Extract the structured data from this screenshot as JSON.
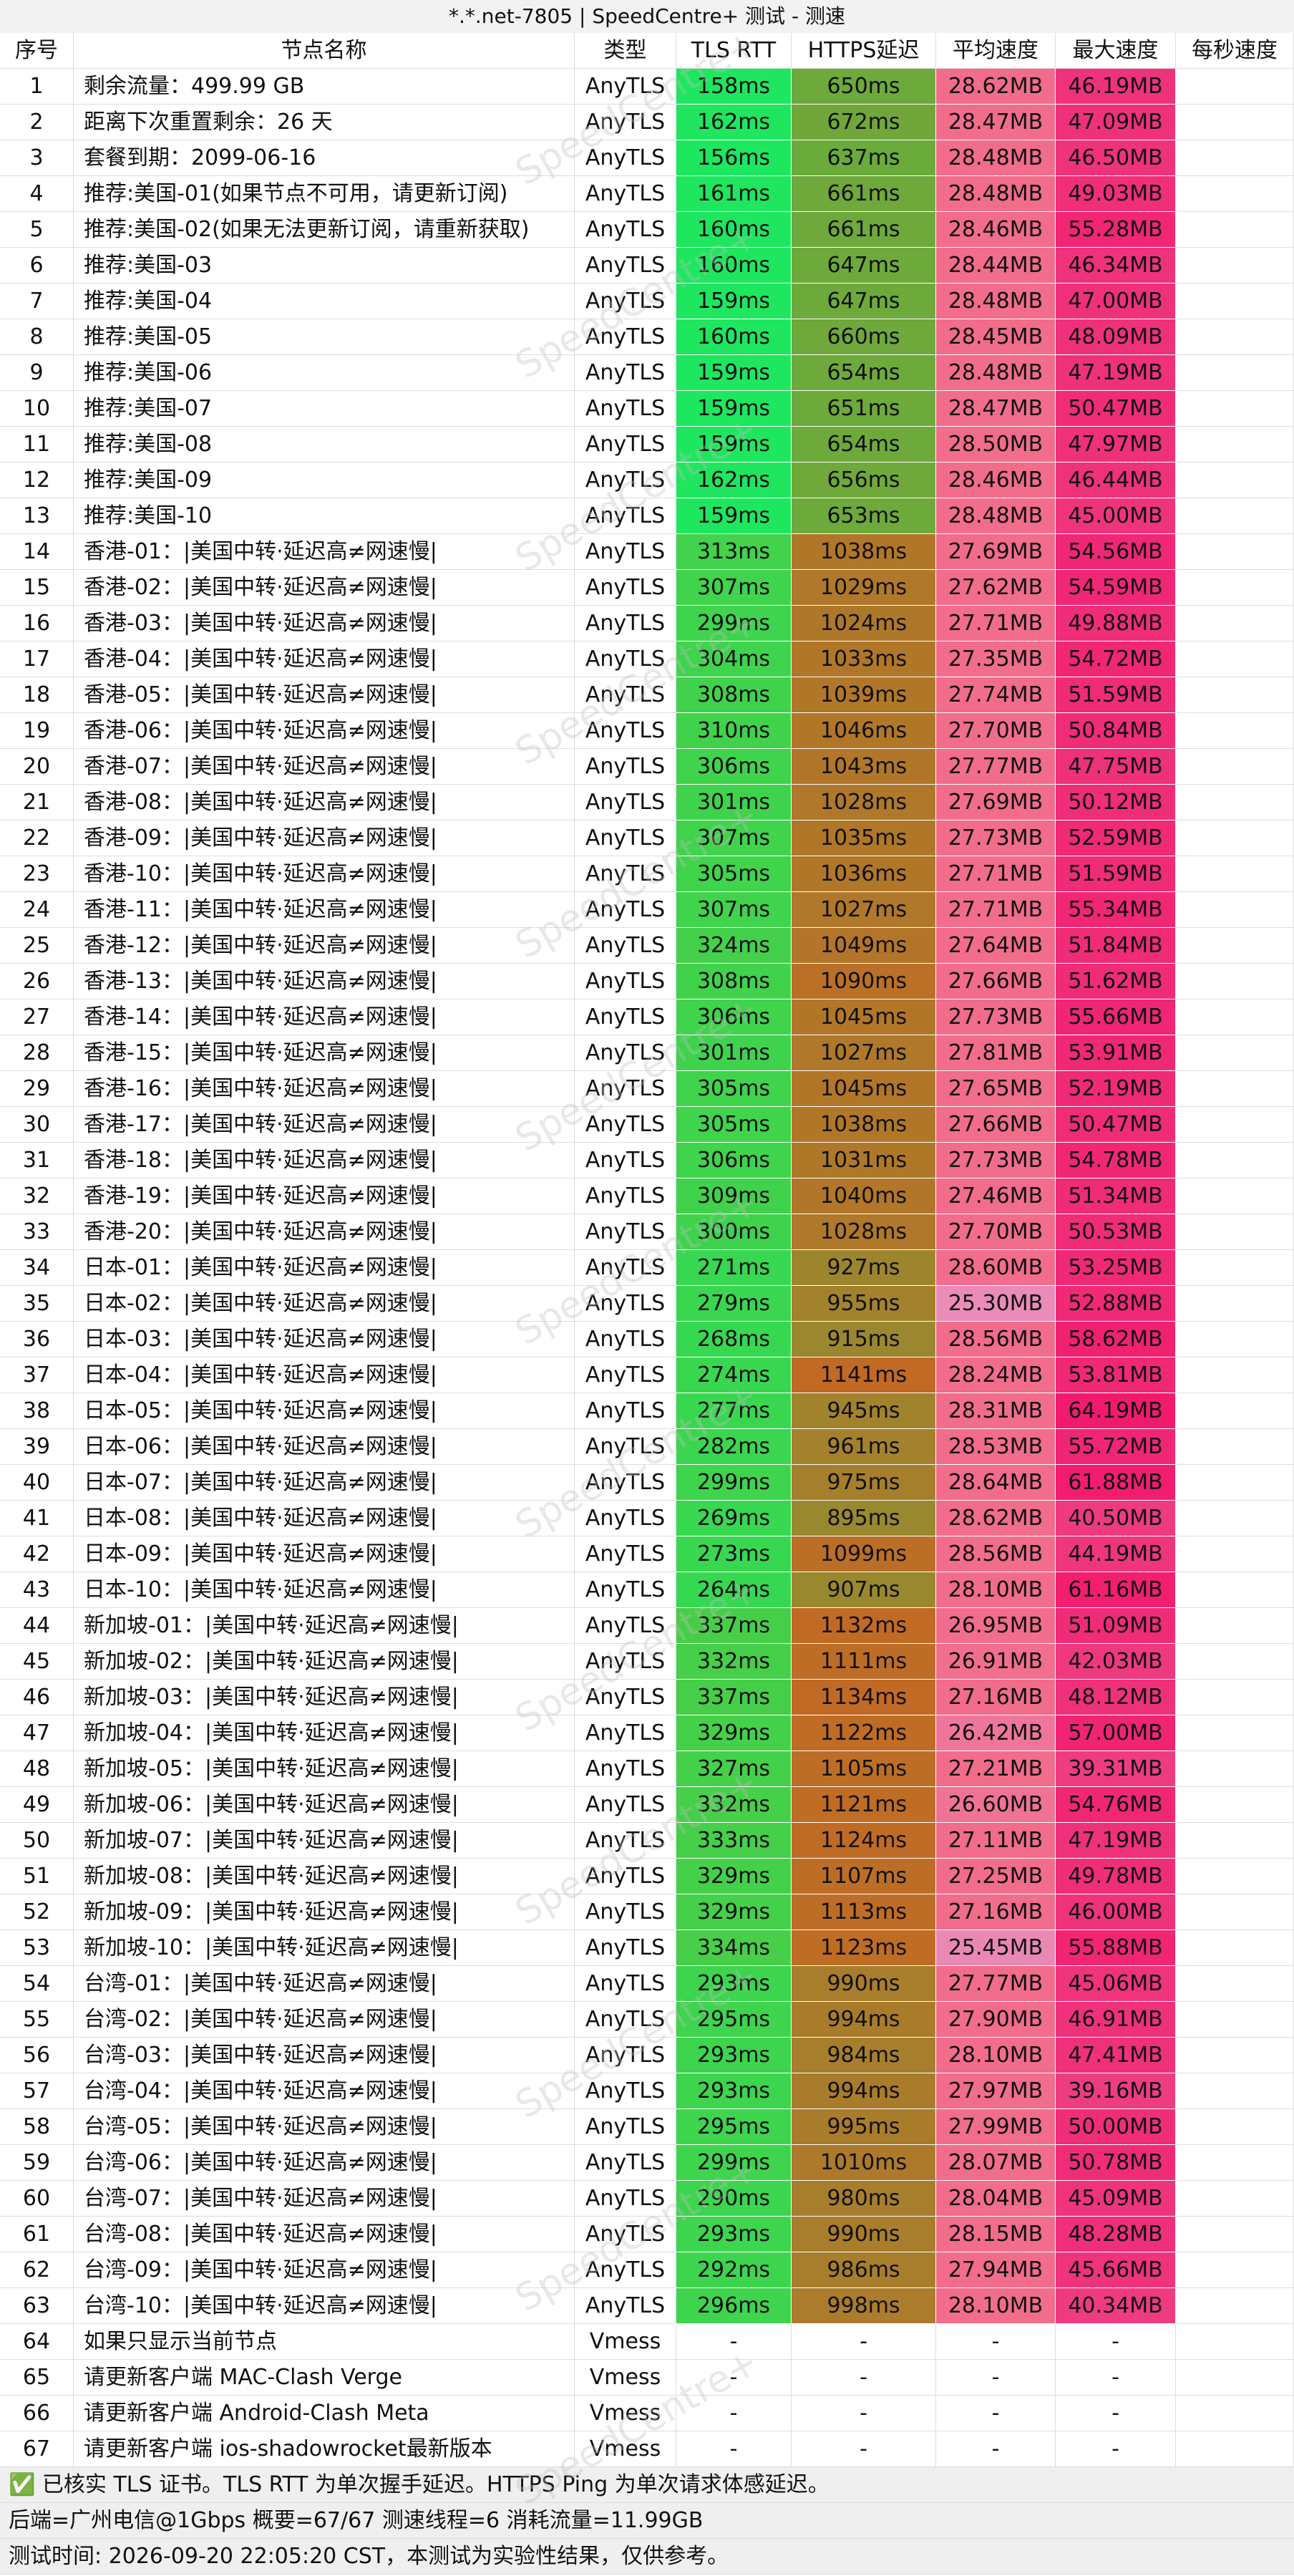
{
  "header": {
    "title": "*.*.net-7805 | SpeedCentre+ 测试 - 测速"
  },
  "watermark": "SpeedCentre+",
  "table": {
    "columns": [
      "序号",
      "节点名称",
      "类型",
      "TLS RTT",
      "HTTPS延迟",
      "平均速度",
      "最大速度",
      "每秒速度"
    ],
    "rows": [
      [
        "1",
        "剩余流量：499.99 GB",
        "AnyTLS",
        "158ms",
        "650ms",
        "28.62MB",
        "46.19MB"
      ],
      [
        "2",
        "距离下次重置剩余：26 天",
        "AnyTLS",
        "162ms",
        "672ms",
        "28.47MB",
        "47.09MB"
      ],
      [
        "3",
        "套餐到期：2099-06-16",
        "AnyTLS",
        "156ms",
        "637ms",
        "28.48MB",
        "46.50MB"
      ],
      [
        "4",
        "推荐:美国-01(如果节点不可用，请更新订阅)",
        "AnyTLS",
        "161ms",
        "661ms",
        "28.48MB",
        "49.03MB"
      ],
      [
        "5",
        "推荐:美国-02(如果无法更新订阅，请重新获取)",
        "AnyTLS",
        "160ms",
        "661ms",
        "28.46MB",
        "55.28MB"
      ],
      [
        "6",
        "推荐:美国-03",
        "AnyTLS",
        "160ms",
        "647ms",
        "28.44MB",
        "46.34MB"
      ],
      [
        "7",
        "推荐:美国-04",
        "AnyTLS",
        "159ms",
        "647ms",
        "28.48MB",
        "47.00MB"
      ],
      [
        "8",
        "推荐:美国-05",
        "AnyTLS",
        "160ms",
        "660ms",
        "28.45MB",
        "48.09MB"
      ],
      [
        "9",
        "推荐:美国-06",
        "AnyTLS",
        "159ms",
        "654ms",
        "28.48MB",
        "47.19MB"
      ],
      [
        "10",
        "推荐:美国-07",
        "AnyTLS",
        "159ms",
        "651ms",
        "28.47MB",
        "50.47MB"
      ],
      [
        "11",
        "推荐:美国-08",
        "AnyTLS",
        "159ms",
        "654ms",
        "28.50MB",
        "47.97MB"
      ],
      [
        "12",
        "推荐:美国-09",
        "AnyTLS",
        "162ms",
        "656ms",
        "28.46MB",
        "46.44MB"
      ],
      [
        "13",
        "推荐:美国-10",
        "AnyTLS",
        "159ms",
        "653ms",
        "28.48MB",
        "45.00MB"
      ],
      [
        "14",
        "香港-01：|美国中转·延迟高≠网速慢|",
        "AnyTLS",
        "313ms",
        "1038ms",
        "27.69MB",
        "54.56MB"
      ],
      [
        "15",
        "香港-02：|美国中转·延迟高≠网速慢|",
        "AnyTLS",
        "307ms",
        "1029ms",
        "27.62MB",
        "54.59MB"
      ],
      [
        "16",
        "香港-03：|美国中转·延迟高≠网速慢|",
        "AnyTLS",
        "299ms",
        "1024ms",
        "27.71MB",
        "49.88MB"
      ],
      [
        "17",
        "香港-04：|美国中转·延迟高≠网速慢|",
        "AnyTLS",
        "304ms",
        "1033ms",
        "27.35MB",
        "54.72MB"
      ],
      [
        "18",
        "香港-05：|美国中转·延迟高≠网速慢|",
        "AnyTLS",
        "308ms",
        "1039ms",
        "27.74MB",
        "51.59MB"
      ],
      [
        "19",
        "香港-06：|美国中转·延迟高≠网速慢|",
        "AnyTLS",
        "310ms",
        "1046ms",
        "27.70MB",
        "50.84MB"
      ],
      [
        "20",
        "香港-07：|美国中转·延迟高≠网速慢|",
        "AnyTLS",
        "306ms",
        "1043ms",
        "27.77MB",
        "47.75MB"
      ],
      [
        "21",
        "香港-08：|美国中转·延迟高≠网速慢|",
        "AnyTLS",
        "301ms",
        "1028ms",
        "27.69MB",
        "50.12MB"
      ],
      [
        "22",
        "香港-09：|美国中转·延迟高≠网速慢|",
        "AnyTLS",
        "307ms",
        "1035ms",
        "27.73MB",
        "52.59MB"
      ],
      [
        "23",
        "香港-10：|美国中转·延迟高≠网速慢|",
        "AnyTLS",
        "305ms",
        "1036ms",
        "27.71MB",
        "51.59MB"
      ],
      [
        "24",
        "香港-11：|美国中转·延迟高≠网速慢|",
        "AnyTLS",
        "307ms",
        "1027ms",
        "27.71MB",
        "55.34MB"
      ],
      [
        "25",
        "香港-12：|美国中转·延迟高≠网速慢|",
        "AnyTLS",
        "324ms",
        "1049ms",
        "27.64MB",
        "51.84MB"
      ],
      [
        "26",
        "香港-13：|美国中转·延迟高≠网速慢|",
        "AnyTLS",
        "308ms",
        "1090ms",
        "27.66MB",
        "51.62MB"
      ],
      [
        "27",
        "香港-14：|美国中转·延迟高≠网速慢|",
        "AnyTLS",
        "306ms",
        "1045ms",
        "27.73MB",
        "55.66MB"
      ],
      [
        "28",
        "香港-15：|美国中转·延迟高≠网速慢|",
        "AnyTLS",
        "301ms",
        "1027ms",
        "27.81MB",
        "53.91MB"
      ],
      [
        "29",
        "香港-16：|美国中转·延迟高≠网速慢|",
        "AnyTLS",
        "305ms",
        "1045ms",
        "27.65MB",
        "52.19MB"
      ],
      [
        "30",
        "香港-17：|美国中转·延迟高≠网速慢|",
        "AnyTLS",
        "305ms",
        "1038ms",
        "27.66MB",
        "50.47MB"
      ],
      [
        "31",
        "香港-18：|美国中转·延迟高≠网速慢|",
        "AnyTLS",
        "306ms",
        "1031ms",
        "27.73MB",
        "54.78MB"
      ],
      [
        "32",
        "香港-19：|美国中转·延迟高≠网速慢|",
        "AnyTLS",
        "309ms",
        "1040ms",
        "27.46MB",
        "51.34MB"
      ],
      [
        "33",
        "香港-20：|美国中转·延迟高≠网速慢|",
        "AnyTLS",
        "300ms",
        "1028ms",
        "27.70MB",
        "50.53MB"
      ],
      [
        "34",
        "日本-01：|美国中转·延迟高≠网速慢|",
        "AnyTLS",
        "271ms",
        "927ms",
        "28.60MB",
        "53.25MB"
      ],
      [
        "35",
        "日本-02：|美国中转·延迟高≠网速慢|",
        "AnyTLS",
        "279ms",
        "955ms",
        "25.30MB",
        "52.88MB"
      ],
      [
        "36",
        "日本-03：|美国中转·延迟高≠网速慢|",
        "AnyTLS",
        "268ms",
        "915ms",
        "28.56MB",
        "58.62MB"
      ],
      [
        "37",
        "日本-04：|美国中转·延迟高≠网速慢|",
        "AnyTLS",
        "274ms",
        "1141ms",
        "28.24MB",
        "53.81MB"
      ],
      [
        "38",
        "日本-05：|美国中转·延迟高≠网速慢|",
        "AnyTLS",
        "277ms",
        "945ms",
        "28.31MB",
        "64.19MB"
      ],
      [
        "39",
        "日本-06：|美国中转·延迟高≠网速慢|",
        "AnyTLS",
        "282ms",
        "961ms",
        "28.53MB",
        "55.72MB"
      ],
      [
        "40",
        "日本-07：|美国中转·延迟高≠网速慢|",
        "AnyTLS",
        "299ms",
        "975ms",
        "28.64MB",
        "61.88MB"
      ],
      [
        "41",
        "日本-08：|美国中转·延迟高≠网速慢|",
        "AnyTLS",
        "269ms",
        "895ms",
        "28.62MB",
        "40.50MB"
      ],
      [
        "42",
        "日本-09：|美国中转·延迟高≠网速慢|",
        "AnyTLS",
        "273ms",
        "1099ms",
        "28.56MB",
        "44.19MB"
      ],
      [
        "43",
        "日本-10：|美国中转·延迟高≠网速慢|",
        "AnyTLS",
        "264ms",
        "907ms",
        "28.10MB",
        "61.16MB"
      ],
      [
        "44",
        "新加坡-01：|美国中转·延迟高≠网速慢|",
        "AnyTLS",
        "337ms",
        "1132ms",
        "26.95MB",
        "51.09MB"
      ],
      [
        "45",
        "新加坡-02：|美国中转·延迟高≠网速慢|",
        "AnyTLS",
        "332ms",
        "1111ms",
        "26.91MB",
        "42.03MB"
      ],
      [
        "46",
        "新加坡-03：|美国中转·延迟高≠网速慢|",
        "AnyTLS",
        "337ms",
        "1134ms",
        "27.16MB",
        "48.12MB"
      ],
      [
        "47",
        "新加坡-04：|美国中转·延迟高≠网速慢|",
        "AnyTLS",
        "329ms",
        "1122ms",
        "26.42MB",
        "57.00MB"
      ],
      [
        "48",
        "新加坡-05：|美国中转·延迟高≠网速慢|",
        "AnyTLS",
        "327ms",
        "1105ms",
        "27.21MB",
        "39.31MB"
      ],
      [
        "49",
        "新加坡-06：|美国中转·延迟高≠网速慢|",
        "AnyTLS",
        "332ms",
        "1121ms",
        "26.60MB",
        "54.76MB"
      ],
      [
        "50",
        "新加坡-07：|美国中转·延迟高≠网速慢|",
        "AnyTLS",
        "333ms",
        "1124ms",
        "27.11MB",
        "47.19MB"
      ],
      [
        "51",
        "新加坡-08：|美国中转·延迟高≠网速慢|",
        "AnyTLS",
        "329ms",
        "1107ms",
        "27.25MB",
        "49.78MB"
      ],
      [
        "52",
        "新加坡-09：|美国中转·延迟高≠网速慢|",
        "AnyTLS",
        "329ms",
        "1113ms",
        "27.16MB",
        "46.00MB"
      ],
      [
        "53",
        "新加坡-10：|美国中转·延迟高≠网速慢|",
        "AnyTLS",
        "334ms",
        "1123ms",
        "25.45MB",
        "55.88MB"
      ],
      [
        "54",
        "台湾-01：|美国中转·延迟高≠网速慢|",
        "AnyTLS",
        "293ms",
        "990ms",
        "27.77MB",
        "45.06MB"
      ],
      [
        "55",
        "台湾-02：|美国中转·延迟高≠网速慢|",
        "AnyTLS",
        "295ms",
        "994ms",
        "27.90MB",
        "46.91MB"
      ],
      [
        "56",
        "台湾-03：|美国中转·延迟高≠网速慢|",
        "AnyTLS",
        "293ms",
        "984ms",
        "28.10MB",
        "47.41MB"
      ],
      [
        "57",
        "台湾-04：|美国中转·延迟高≠网速慢|",
        "AnyTLS",
        "293ms",
        "994ms",
        "27.97MB",
        "39.16MB"
      ],
      [
        "58",
        "台湾-05：|美国中转·延迟高≠网速慢|",
        "AnyTLS",
        "295ms",
        "995ms",
        "27.99MB",
        "50.00MB"
      ],
      [
        "59",
        "台湾-06：|美国中转·延迟高≠网速慢|",
        "AnyTLS",
        "299ms",
        "1010ms",
        "28.07MB",
        "50.78MB"
      ],
      [
        "60",
        "台湾-07：|美国中转·延迟高≠网速慢|",
        "AnyTLS",
        "290ms",
        "980ms",
        "28.04MB",
        "45.09MB"
      ],
      [
        "61",
        "台湾-08：|美国中转·延迟高≠网速慢|",
        "AnyTLS",
        "293ms",
        "990ms",
        "28.15MB",
        "48.28MB"
      ],
      [
        "62",
        "台湾-09：|美国中转·延迟高≠网速慢|",
        "AnyTLS",
        "292ms",
        "986ms",
        "27.94MB",
        "45.66MB"
      ],
      [
        "63",
        "台湾-10：|美国中转·延迟高≠网速慢|",
        "AnyTLS",
        "296ms",
        "998ms",
        "28.10MB",
        "40.34MB"
      ],
      [
        "64",
        "如果只显示当前节点",
        "Vmess",
        "-",
        "-",
        "-",
        "-"
      ],
      [
        "65",
        "请更新客户端 MAC-Clash Verge",
        "Vmess",
        "-",
        "-",
        "-",
        "-"
      ],
      [
        "66",
        "请更新客户端 Android-Clash Meta",
        "Vmess",
        "-",
        "-",
        "-",
        "-"
      ],
      [
        "67",
        "请更新客户端 ios-shadowrocket最新版本",
        "Vmess",
        "-",
        "-",
        "-",
        "-"
      ]
    ]
  },
  "footer": [
    "✅ 已核实 TLS 证书。TLS RTT 为单次握手延迟。HTTPS Ping 为单次请求体感延迟。",
    "后端=广州电信@1Gbps 概要=67/67 测速线程=6 消耗流量=11.99GB",
    "测试时间: 2026-09-20 22:05:20 CST，本测试为实验性结果，仅供参考。"
  ]
}
